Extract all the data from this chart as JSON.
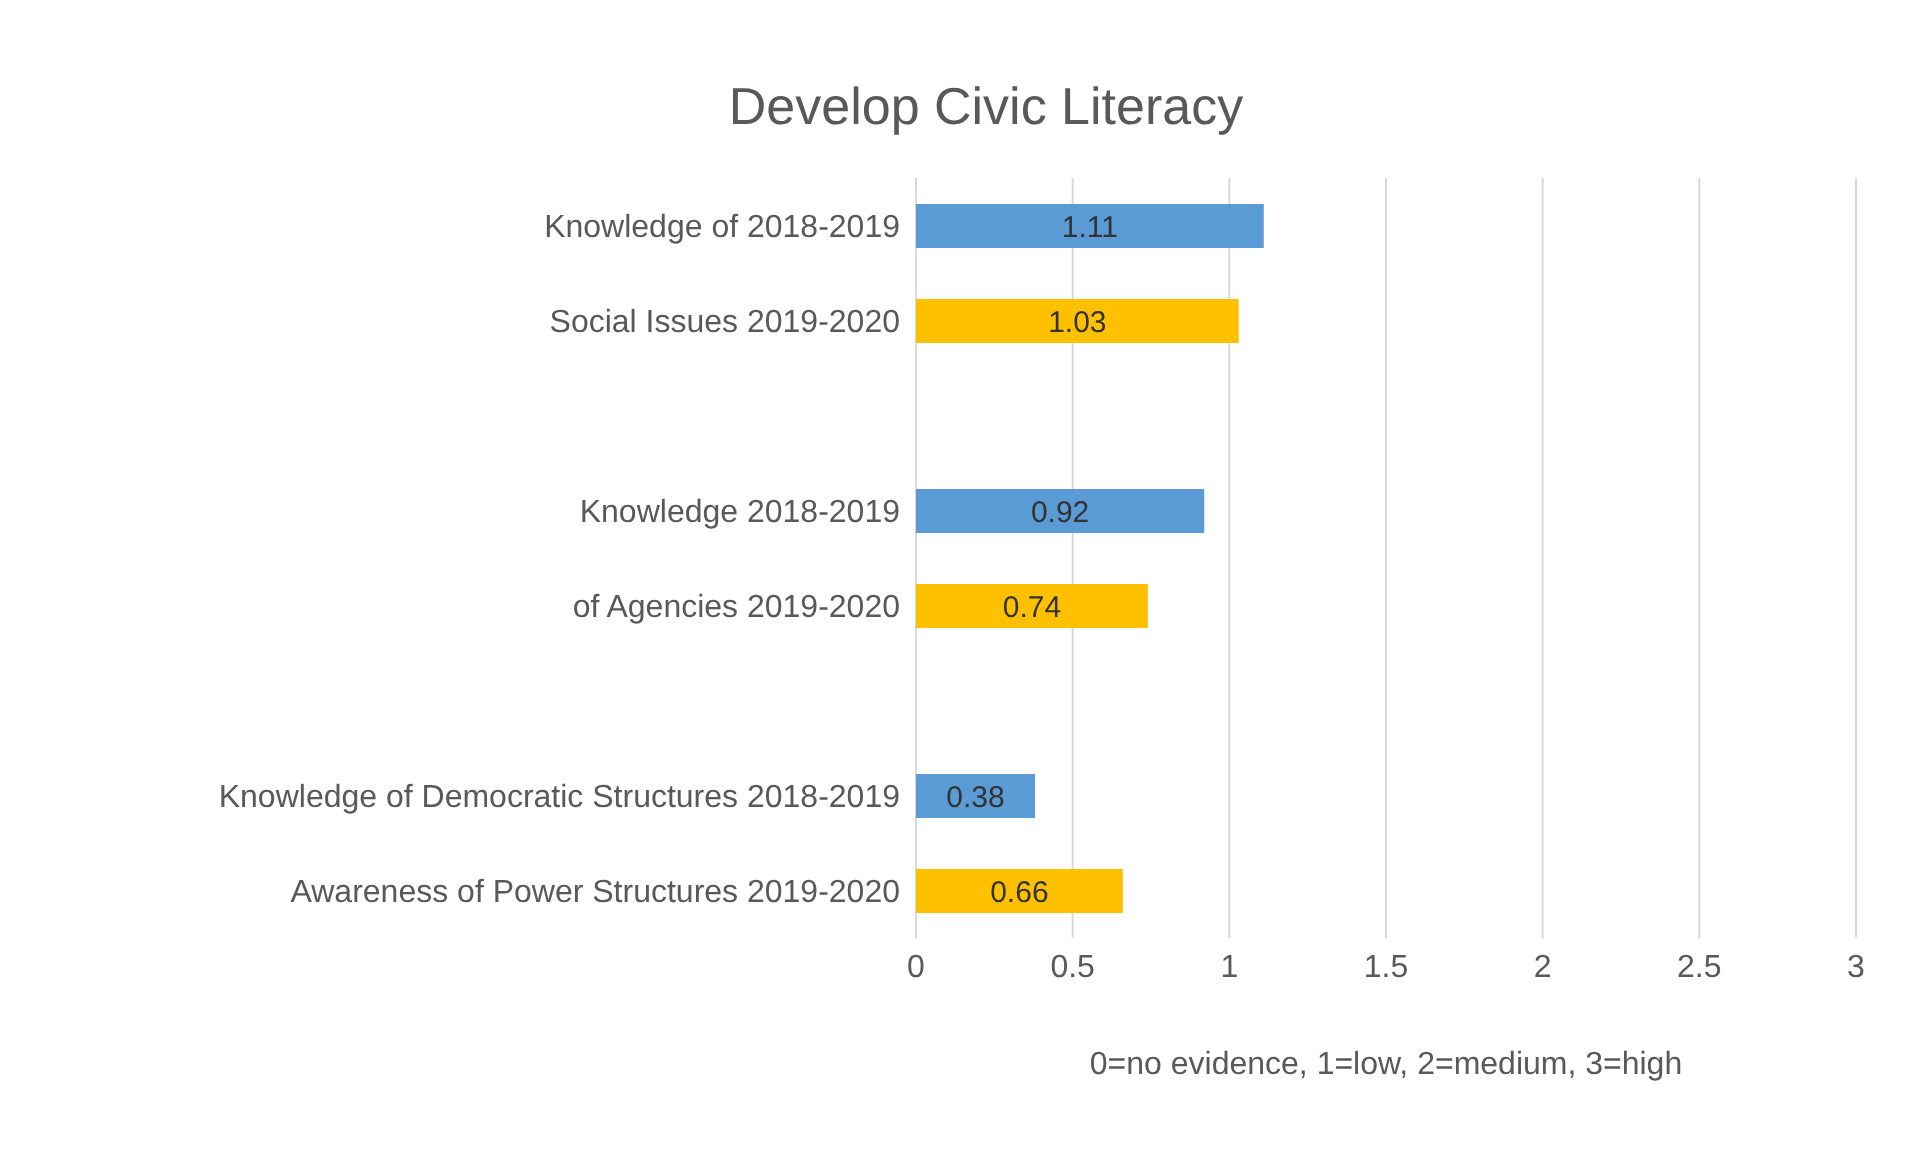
{
  "chart_data": {
    "type": "bar",
    "orientation": "horizontal",
    "title": "Develop Civic Literacy",
    "xlabel": "0=no evidence, 1=low, 2=medium, 3=high",
    "categories": [
      "Knowledge of 2018-2019",
      "Social Issues 2019-2020",
      null,
      "Knowledge 2018-2019",
      "of Agencies 2019-2020",
      null,
      "Knowledge of Democratic Structures 2018-2019",
      "Awareness of Power Structures 2019-2020"
    ],
    "values": [
      1.11,
      1.03,
      null,
      0.92,
      0.74,
      null,
      0.38,
      0.66
    ],
    "colors": [
      "#5b9bd5",
      "#ffc000",
      null,
      "#5b9bd5",
      "#ffc000",
      null,
      "#5b9bd5",
      "#ffc000"
    ],
    "xlim": [
      0,
      3
    ],
    "xticks": [
      0,
      0.5,
      1,
      1.5,
      2,
      2.5,
      3
    ],
    "grid": "x",
    "data_labels": true
  }
}
